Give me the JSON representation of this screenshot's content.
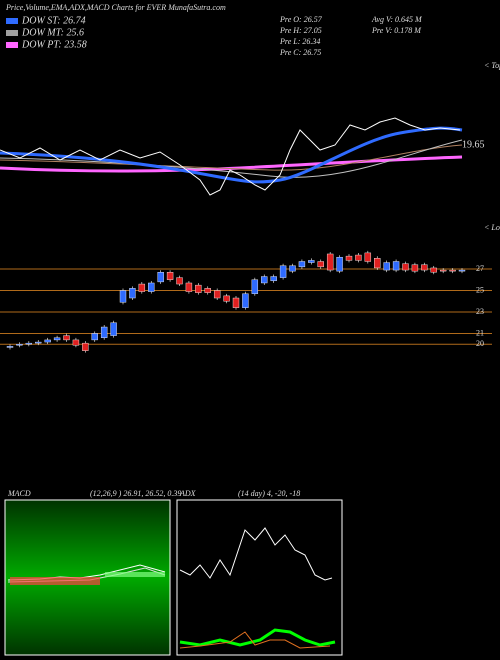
{
  "chart_data": {
    "type": "candlestick",
    "title": "Price,Volume,EMA,ADX,MACD Charts for EVER MunafaSutra.com",
    "legend": [
      {
        "name": "DOW ST: 26.74",
        "color": "#2f6bff"
      },
      {
        "name": "DOW MT: 25.6",
        "color": "#a0a0a0"
      },
      {
        "name": "DOW PT: 23.58",
        "color": "#ff66ff"
      }
    ],
    "prev": [
      "Pre  O: 26.57",
      "Pre  H: 27.05",
      "Pre  L: 26.34",
      "Pre  C: 26.75"
    ],
    "avg_volume": "Avg V: 0.645 M",
    "prev_volume": "Pre  V: 0.178  M",
    "top_label": "19.65",
    "tops": "< Tops",
    "lows": "< Lows",
    "ylim": [
      17.6,
      29.7
    ],
    "yticks": [
      27,
      25,
      23,
      21,
      20
    ],
    "level_color": "#b06a1a",
    "up_color": "#2f6bff",
    "down_color": "#e02020",
    "candles": [
      {
        "open": 19.7,
        "close": 19.8
      },
      {
        "open": 19.9,
        "close": 20.0
      },
      {
        "open": 20.0,
        "close": 20.1
      },
      {
        "open": 20.1,
        "close": 20.2
      },
      {
        "open": 20.2,
        "close": 20.4
      },
      {
        "open": 20.4,
        "close": 20.6
      },
      {
        "open": 20.8,
        "close": 20.4
      },
      {
        "open": 20.4,
        "close": 19.9
      },
      {
        "open": 20.1,
        "close": 19.4
      },
      {
        "open": 20.4,
        "close": 21.0
      },
      {
        "open": 20.6,
        "close": 21.6
      },
      {
        "open": 20.8,
        "close": 22.0
      },
      {
        "open": 23.9,
        "close": 25.0
      },
      {
        "open": 24.3,
        "close": 25.2
      },
      {
        "open": 25.6,
        "close": 24.9
      },
      {
        "open": 24.9,
        "close": 25.7
      },
      {
        "open": 25.8,
        "close": 26.7
      },
      {
        "open": 26.7,
        "close": 26.0
      },
      {
        "open": 26.2,
        "close": 25.6
      },
      {
        "open": 25.7,
        "close": 24.9
      },
      {
        "open": 25.5,
        "close": 24.8
      },
      {
        "open": 25.2,
        "close": 24.8
      },
      {
        "open": 25.0,
        "close": 24.3
      },
      {
        "open": 24.5,
        "close": 24.0
      },
      {
        "open": 24.3,
        "close": 23.4
      },
      {
        "open": 23.4,
        "close": 24.7
      },
      {
        "open": 24.7,
        "close": 26.0
      },
      {
        "open": 25.7,
        "close": 26.3
      },
      {
        "open": 25.9,
        "close": 26.3
      },
      {
        "open": 26.2,
        "close": 27.3
      },
      {
        "open": 26.8,
        "close": 27.3
      },
      {
        "open": 27.2,
        "close": 27.7
      },
      {
        "open": 27.6,
        "close": 27.8
      },
      {
        "open": 27.7,
        "close": 27.2
      },
      {
        "open": 28.4,
        "close": 26.9
      },
      {
        "open": 26.8,
        "close": 28.1
      },
      {
        "open": 28.2,
        "close": 27.8
      },
      {
        "open": 28.3,
        "close": 27.8
      },
      {
        "open": 28.5,
        "close": 27.7
      },
      {
        "open": 28.0,
        "close": 27.1
      },
      {
        "open": 26.9,
        "close": 27.6
      },
      {
        "open": 26.9,
        "close": 27.7
      },
      {
        "open": 27.5,
        "close": 26.9
      },
      {
        "open": 27.4,
        "close": 26.8
      },
      {
        "open": 27.4,
        "close": 26.9
      },
      {
        "open": 27.1,
        "close": 26.7
      },
      {
        "open": 26.9,
        "close": 26.8
      },
      {
        "open": 26.9,
        "close": 26.8
      },
      {
        "open": 26.8,
        "close": 26.9
      }
    ],
    "macd": {
      "label": "MACD",
      "params": "(12,26,9 ) 26.91, 26.52, 0.39"
    },
    "adx": {
      "label": "ADX",
      "params": "(14  day) 4, -20, -18"
    }
  }
}
